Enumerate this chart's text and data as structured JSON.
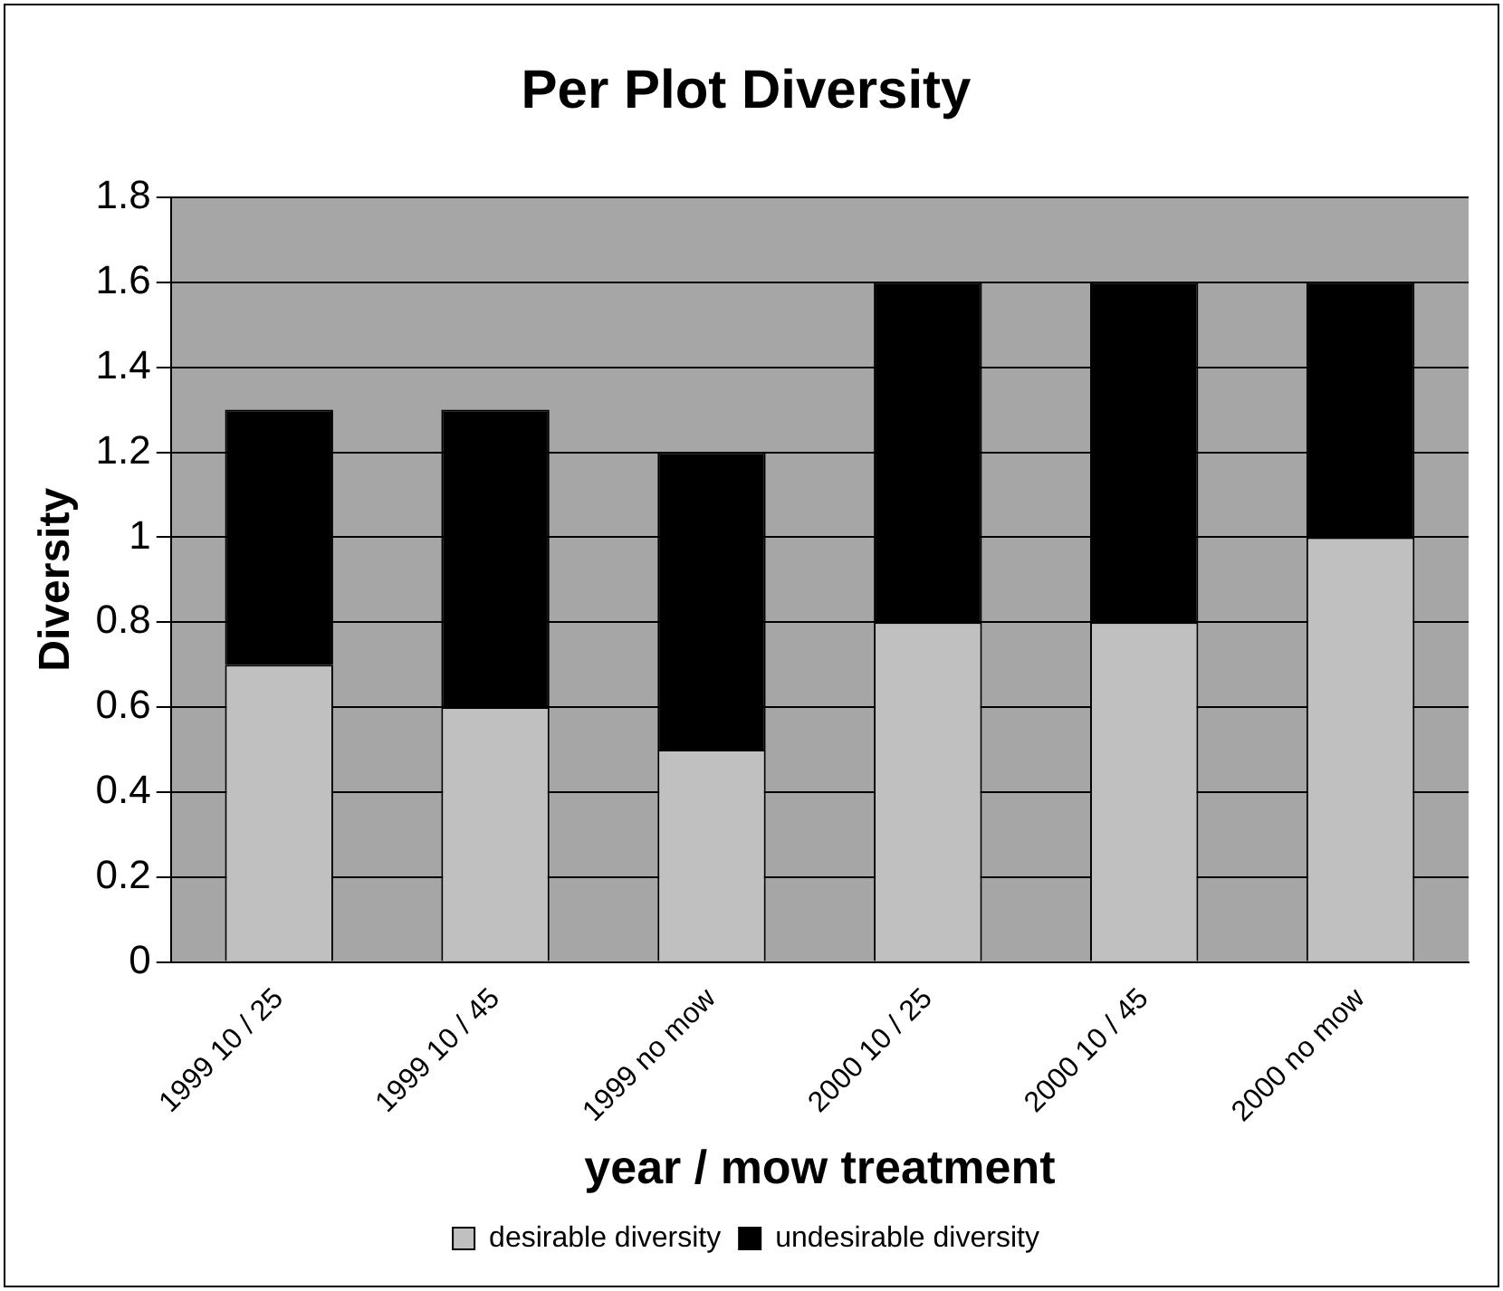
{
  "chart_data": {
    "type": "bar",
    "title": "Per Plot Diversity",
    "xlabel": "year / mow treatment",
    "ylabel": "Diversity",
    "categories": [
      "1999 10 / 25",
      "1999 10 / 45",
      "1999 no mow",
      "2000 10 / 25",
      "2000 10 / 45",
      "2000 no mow"
    ],
    "series": [
      {
        "name": "desirable diversity",
        "color": "#c0c0c0",
        "values": [
          0.7,
          0.6,
          0.5,
          0.8,
          0.8,
          1.0
        ]
      },
      {
        "name": "undesirable diversity",
        "color": "#000000",
        "values": [
          0.6,
          0.7,
          0.7,
          0.8,
          0.8,
          0.6
        ]
      }
    ],
    "stacked": true,
    "ylim": [
      0,
      1.8
    ],
    "yticks": [
      0,
      0.2,
      0.4,
      0.6,
      0.8,
      1,
      1.2,
      1.4,
      1.6,
      1.8
    ],
    "grid": "y",
    "legend": "bottom"
  }
}
